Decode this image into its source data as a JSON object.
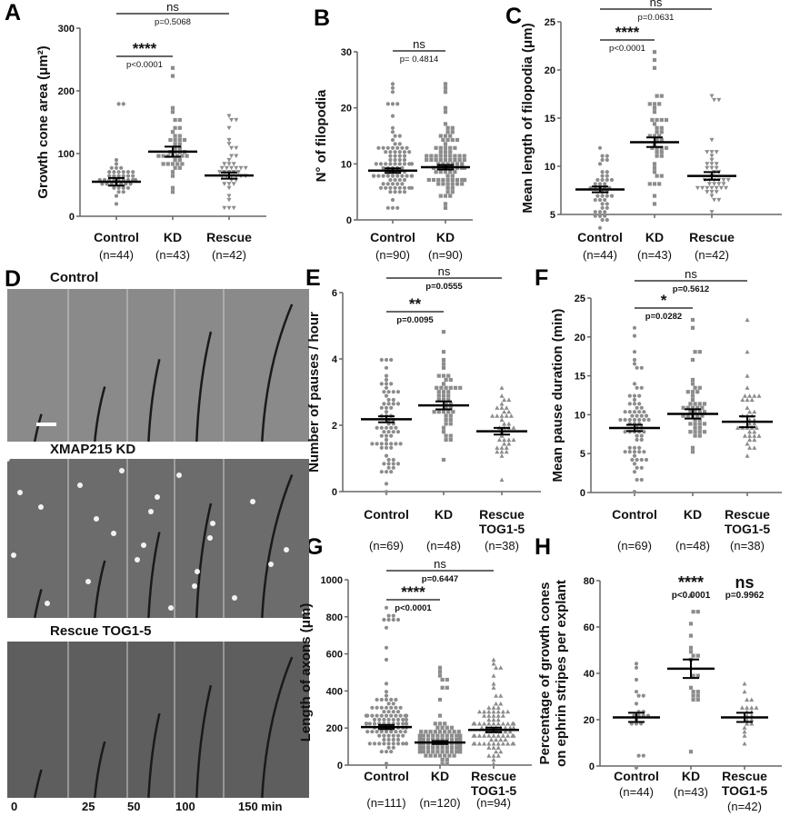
{
  "panel_letters": [
    "A",
    "B",
    "C",
    "D",
    "E",
    "F",
    "G",
    "H"
  ],
  "panel_d": {
    "rows": [
      "Control",
      "XMAP215 KD",
      "Rescue TOG1-5"
    ],
    "row_colors": [
      "#8a8a8a",
      "#6c6c6c",
      "#5e5e5e"
    ],
    "time_labels": [
      "0",
      "25",
      "50",
      "100",
      "150 min"
    ]
  },
  "colors": {
    "points": "#8c8c8c",
    "mean_bar": "#000000",
    "axis": "#666666"
  },
  "chart_data": [
    {
      "id": "A",
      "type": "scatter",
      "ylabel": "Growth cone area (μm²)",
      "ylim": [
        0,
        300
      ],
      "yticks": [
        0,
        100,
        200,
        300
      ],
      "groups": [
        {
          "label": "Control",
          "n_label": "(n=44)",
          "n": 44,
          "mean": 55,
          "sem": 6,
          "min": 18,
          "max": 181,
          "marker": "circle"
        },
        {
          "label": "KD",
          "n_label": "(n=43)",
          "n": 43,
          "mean": 103,
          "sem": 8,
          "min": 41,
          "max": 238,
          "marker": "square"
        },
        {
          "label": "Rescue",
          "n_label": "(n=42)",
          "n": 42,
          "mean": 65,
          "sem": 5,
          "min": 12,
          "max": 157,
          "marker": "triangle-down"
        }
      ],
      "comparisons": [
        {
          "from": 0,
          "to": 1,
          "stars": "****",
          "p": "p<0.0001"
        },
        {
          "from": 0,
          "to": 2,
          "stars": "ns",
          "p": "p=0.5068"
        }
      ]
    },
    {
      "id": "B",
      "type": "scatter",
      "ylabel": "N° of filopodia",
      "ylim": [
        0,
        30
      ],
      "yticks": [
        0,
        10,
        20,
        30
      ],
      "groups": [
        {
          "label": "Control",
          "n_label": "(n=90)",
          "n": 90,
          "mean": 8.8,
          "sem": 0.4,
          "min": 2,
          "max": 24,
          "marker": "circle"
        },
        {
          "label": "KD",
          "n_label": "(n=90)",
          "n": 90,
          "mean": 9.4,
          "sem": 0.4,
          "min": 2,
          "max": 24,
          "marker": "square"
        }
      ],
      "comparisons": [
        {
          "from": 0,
          "to": 1,
          "stars": "ns",
          "p": "p= 0.4814"
        }
      ]
    },
    {
      "id": "C",
      "type": "scatter",
      "ylabel": "Mean length of filopodia (μm)",
      "ylim": [
        5,
        25
      ],
      "yticks": [
        5,
        10,
        15,
        20,
        25
      ],
      "groups": [
        {
          "label": "Control",
          "n_label": "(n=44)",
          "n": 44,
          "mean": 7.6,
          "sem": 0.3,
          "min": 3.5,
          "max": 12,
          "marker": "circle"
        },
        {
          "label": "KD",
          "n_label": "(n=43)",
          "n": 43,
          "mean": 12.5,
          "sem": 0.5,
          "min": 6,
          "max": 22,
          "marker": "square"
        },
        {
          "label": "Rescue",
          "n_label": "(n=42)",
          "n": 42,
          "mean": 9,
          "sem": 0.4,
          "min": 5.3,
          "max": 17.3,
          "marker": "triangle-down"
        }
      ],
      "comparisons": [
        {
          "from": 0,
          "to": 1,
          "stars": "****",
          "p": "p<0.0001"
        },
        {
          "from": 0,
          "to": 2,
          "stars": "ns",
          "p": "p=0.0631"
        }
      ]
    },
    {
      "id": "E",
      "type": "scatter",
      "ylabel": "Number of pauses / hour",
      "ylim": [
        0,
        6
      ],
      "yticks": [
        0,
        2,
        4,
        6
      ],
      "groups": [
        {
          "label": "Control",
          "n_label": "(n=69)",
          "n": 69,
          "mean": 2.18,
          "sem": 0.09,
          "min": 0,
          "max": 4,
          "marker": "circle"
        },
        {
          "label": "KD",
          "n_label": "(n=48)",
          "n": 48,
          "mean": 2.6,
          "sem": 0.12,
          "min": 0.95,
          "max": 4.8,
          "marker": "square"
        },
        {
          "label": "Rescue",
          "label2": "TOG1-5",
          "n_label": "(n=38)",
          "n": 38,
          "mean": 1.82,
          "sem": 0.1,
          "min": 0.4,
          "max": 3.1,
          "marker": "triangle-up"
        }
      ],
      "comparisons": [
        {
          "from": 0,
          "to": 1,
          "stars": "**",
          "p": "p=0.0095"
        },
        {
          "from": 0,
          "to": 2,
          "stars": "ns",
          "p": "p=0.0555"
        }
      ]
    },
    {
      "id": "F",
      "type": "scatter",
      "ylabel": "Mean pause duration (min)",
      "ylim": [
        0,
        25
      ],
      "yticks": [
        0,
        5,
        10,
        15,
        20,
        25
      ],
      "groups": [
        {
          "label": "Control",
          "n_label": "(n=69)",
          "n": 69,
          "mean": 8.3,
          "sem": 0.4,
          "min": 0,
          "max": 21.2,
          "marker": "circle"
        },
        {
          "label": "KD",
          "n_label": "(n=48)",
          "n": 48,
          "mean": 10.1,
          "sem": 0.6,
          "min": 5,
          "max": 22.4,
          "marker": "square"
        },
        {
          "label": "Rescue",
          "label2": "TOG1-5",
          "n_label": "(n=38)",
          "n": 38,
          "mean": 9.1,
          "sem": 0.7,
          "min": 4.9,
          "max": 22,
          "marker": "triangle-up"
        }
      ],
      "comparisons": [
        {
          "from": 0,
          "to": 1,
          "stars": "*",
          "p": "p=0.0282"
        },
        {
          "from": 0,
          "to": 2,
          "stars": "ns",
          "p": "p=0.5612"
        }
      ]
    },
    {
      "id": "G",
      "type": "scatter",
      "ylabel": "Length of axons (μm)",
      "ylim": [
        0,
        1000
      ],
      "yticks": [
        0,
        200,
        400,
        600,
        800,
        1000
      ],
      "groups": [
        {
          "label": "Control",
          "n_label": "(n=111)",
          "n": 111,
          "mean": 205,
          "sem": 11,
          "min": 5,
          "max": 850,
          "marker": "circle"
        },
        {
          "label": "KD",
          "n_label": "(n=120)",
          "n": 120,
          "mean": 122,
          "sem": 8,
          "min": 15,
          "max": 530,
          "marker": "square"
        },
        {
          "label": "Rescue",
          "label2": "TOG1-5",
          "n_label": "(n=94)",
          "n": 94,
          "mean": 190,
          "sem": 12,
          "min": 10,
          "max": 560,
          "marker": "triangle-up"
        }
      ],
      "comparisons": [
        {
          "from": 0,
          "to": 1,
          "stars": "****",
          "p": "p<0.0001"
        },
        {
          "from": 0,
          "to": 2,
          "stars": "ns",
          "p": "p=0.6447"
        }
      ]
    },
    {
      "id": "H",
      "type": "scatter",
      "ylabel": "Percentage of growth cones",
      "ylabel2": "on ephrin stripes per explant",
      "ylim": [
        0,
        80
      ],
      "yticks": [
        0,
        20,
        40,
        60,
        80
      ],
      "groups": [
        {
          "label": "Control",
          "n_label": "(n=44)",
          "n": 44,
          "mean": 21,
          "sem": 2,
          "min": 0,
          "max": 44,
          "marker": "circle"
        },
        {
          "label": "KD",
          "n_label": "(n=43)",
          "n": 43,
          "mean": 42,
          "sem": 4,
          "min": 6,
          "max": 73,
          "marker": "square",
          "stars": "****",
          "p": "p<0.0001"
        },
        {
          "label": "Rescue",
          "label2": "TOG1-5",
          "n_label": "(n=42)",
          "n": 42,
          "mean": 21,
          "sem": 2,
          "min": 9,
          "max": 36,
          "marker": "triangle-up",
          "stars": "ns",
          "p": "p=0.9962"
        }
      ],
      "comparisons": []
    }
  ]
}
